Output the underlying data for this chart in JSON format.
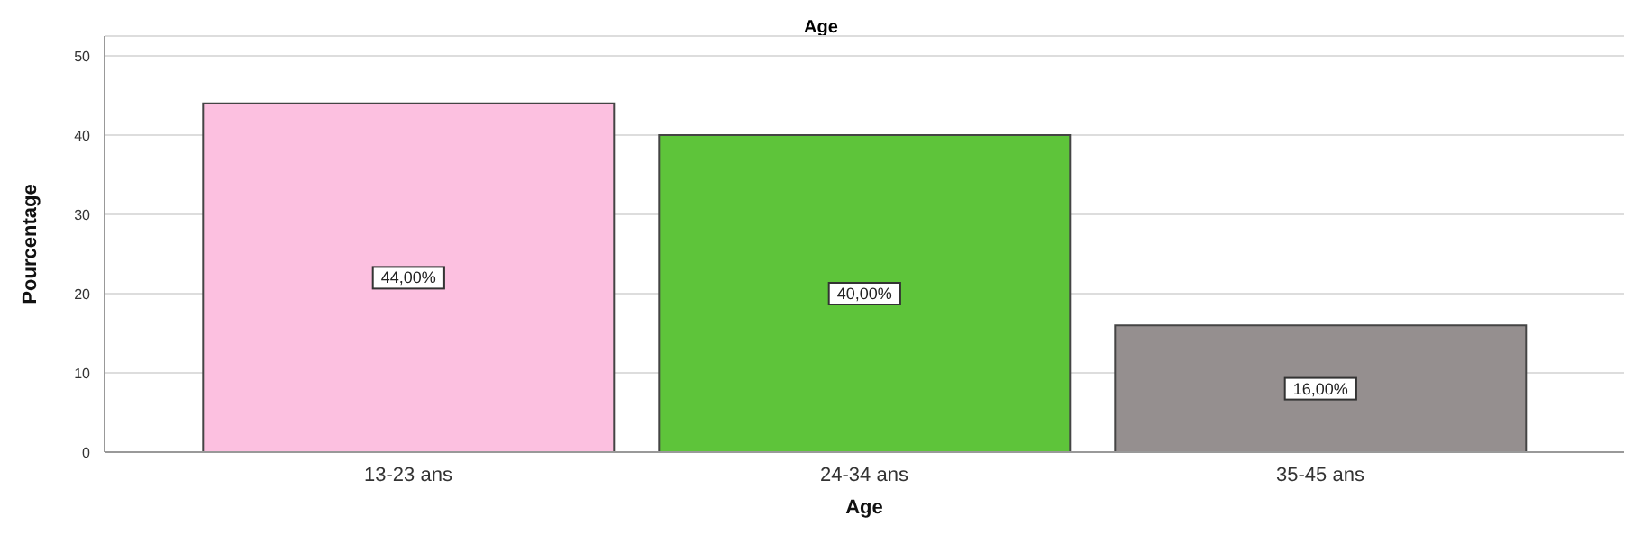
{
  "chart_data": {
    "type": "bar",
    "title": "Age",
    "xlabel": "Age",
    "ylabel": "Pourcentage",
    "categories": [
      "13-23 ans",
      "24-34 ans",
      "35-45 ans"
    ],
    "values": [
      44,
      40,
      16
    ],
    "colors": [
      "#fcc0e0",
      "#5ec43a",
      "#958f8f"
    ],
    "value_labels": [
      "44,00%",
      "40,00%",
      "16,00%"
    ],
    "ylim": [
      0,
      52.5
    ],
    "yticks": [
      0,
      10,
      20,
      30,
      40,
      50
    ],
    "grid": "y"
  }
}
